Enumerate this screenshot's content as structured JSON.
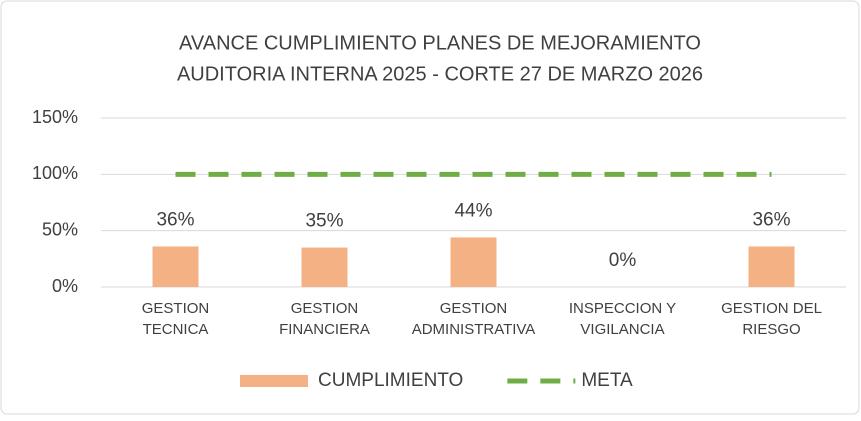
{
  "chart_data": {
    "type": "bar",
    "title": [
      "AVANCE CUMPLIMIENTO PLANES DE MEJORAMIENTO",
      "AUDITORIA INTERNA 2025 - CORTE 27 DE MARZO 2026"
    ],
    "categories": [
      [
        "GESTION",
        "TECNICA"
      ],
      [
        "GESTION",
        "FINANCIERA"
      ],
      [
        "GESTION",
        "ADMINISTRATIVA"
      ],
      [
        "INSPECCION Y",
        "VIGILANCIA"
      ],
      [
        "GESTION DEL",
        "RIESGO"
      ]
    ],
    "series": [
      {
        "name": "CUMPLIMIENTO",
        "type": "bar",
        "color": "#f4b183",
        "values": [
          36,
          35,
          44,
          0,
          36
        ],
        "value_labels": [
          "36%",
          "35%",
          "44%",
          "0%",
          "36%"
        ]
      },
      {
        "name": "META",
        "type": "line",
        "color": "#70ad47",
        "values": [
          100,
          100,
          100,
          100,
          100
        ]
      }
    ],
    "ylim": [
      0,
      150
    ],
    "yticks": [
      {
        "value": 0,
        "label": "0%"
      },
      {
        "value": 50,
        "label": "50%"
      },
      {
        "value": 100,
        "label": "100%"
      },
      {
        "value": 150,
        "label": "150%"
      }
    ],
    "grid": true,
    "legend": "bottom"
  }
}
